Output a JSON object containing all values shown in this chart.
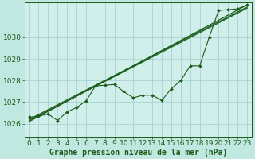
{
  "title": "Graphe pression niveau de la mer (hPa)",
  "bg_color": "#c0e8e0",
  "plot_bg_color": "#d0eeea",
  "grid_color": "#a0cccc",
  "line_color": "#1a5c1a",
  "marker_color": "#1a5c1a",
  "xlim": [
    -0.5,
    23.5
  ],
  "ylim": [
    1025.4,
    1031.6
  ],
  "yticks": [
    1026,
    1027,
    1028,
    1029,
    1030
  ],
  "xticks": [
    0,
    1,
    2,
    3,
    4,
    5,
    6,
    7,
    8,
    9,
    10,
    11,
    12,
    13,
    14,
    15,
    16,
    17,
    18,
    19,
    20,
    21,
    22,
    23
  ],
  "main_x": [
    0,
    1,
    2,
    3,
    4,
    5,
    6,
    7,
    8,
    9,
    10,
    11,
    12,
    13,
    14,
    15,
    16,
    17,
    18,
    19,
    20,
    21,
    22,
    23
  ],
  "main_y": [
    1026.3,
    1026.35,
    1026.45,
    1026.15,
    1026.55,
    1026.75,
    1027.05,
    1027.75,
    1027.78,
    1027.82,
    1027.48,
    1027.2,
    1027.32,
    1027.32,
    1027.08,
    1027.62,
    1028.0,
    1028.68,
    1028.68,
    1030.0,
    1031.25,
    1031.28,
    1031.32,
    1031.5
  ],
  "trend1_x": [
    0,
    23
  ],
  "trend1_y": [
    1026.1,
    1031.5
  ],
  "trend2_x": [
    0,
    23
  ],
  "trend2_y": [
    1026.2,
    1031.4
  ],
  "trend3_x": [
    0,
    23
  ],
  "trend3_y": [
    1026.15,
    1031.35
  ],
  "font_size": 6.5,
  "xlabel_size": 7.0
}
